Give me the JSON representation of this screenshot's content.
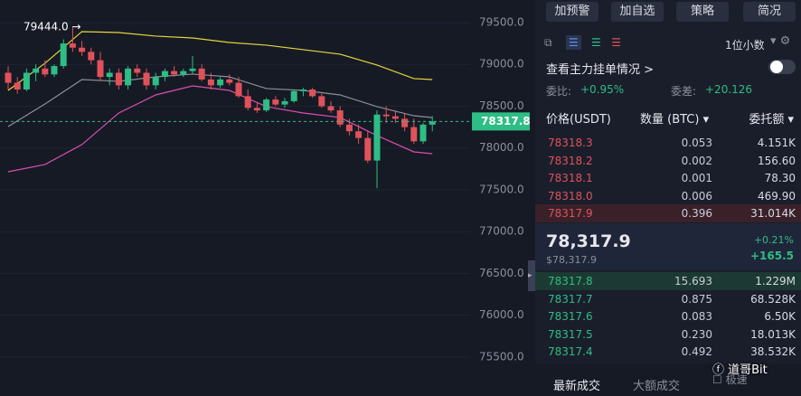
{
  "chart_data": {
    "type": "candlestick",
    "open": [
      78900,
      78780,
      78700,
      78900,
      78950,
      78880,
      78980,
      79250,
      79200,
      79150,
      79050,
      78850,
      78900,
      78750,
      78950,
      78900,
      78750,
      78850,
      78920,
      78880,
      78920,
      78950,
      78820,
      78750,
      78820,
      78780,
      78620,
      78480,
      78450,
      78580,
      78520,
      78560,
      78680,
      78700,
      78620,
      78500,
      78450,
      78280,
      78200,
      78120,
      77850,
      78400,
      78380,
      78350,
      78250,
      78080,
      78280
    ],
    "high": [
      78980,
      78850,
      78950,
      79000,
      79050,
      79000,
      79300,
      79444,
      79280,
      79200,
      79150,
      78950,
      78950,
      78980,
      79000,
      78950,
      78900,
      78950,
      78980,
      78950,
      79100,
      79000,
      78900,
      78850,
      78880,
      78850,
      78700,
      78550,
      78600,
      78620,
      78600,
      78700,
      78720,
      78720,
      78650,
      78560,
      78500,
      78350,
      78280,
      78200,
      78450,
      78500,
      78450,
      78420,
      78350,
      78300,
      78380
    ],
    "low": [
      78700,
      78650,
      78680,
      78800,
      78850,
      78850,
      78950,
      79150,
      79100,
      79000,
      78800,
      78750,
      78700,
      78700,
      78850,
      78700,
      78700,
      78800,
      78850,
      78850,
      78880,
      78800,
      78700,
      78720,
      78750,
      78600,
      78450,
      78420,
      78430,
      78500,
      78480,
      78540,
      78620,
      78600,
      78480,
      78420,
      78250,
      78150,
      78050,
      77820,
      77520,
      78300,
      78300,
      78200,
      78050,
      78050,
      78200
    ],
    "close": [
      78780,
      78700,
      78900,
      78950,
      78880,
      78980,
      79250,
      79200,
      79150,
      79050,
      78850,
      78900,
      78750,
      78950,
      78900,
      78750,
      78850,
      78920,
      78880,
      78920,
      78950,
      78820,
      78750,
      78820,
      78780,
      78620,
      78480,
      78450,
      78580,
      78520,
      78560,
      78680,
      78700,
      78620,
      78500,
      78450,
      78280,
      78200,
      78120,
      77850,
      78400,
      78380,
      78350,
      78250,
      78080,
      78280,
      78318
    ],
    "up_color": "#2ebd85",
    "down_color": "#e0525a",
    "indicators": [
      {
        "color": "#e6d63a",
        "x": [
          0,
          4,
          8,
          12,
          16,
          20,
          24,
          28,
          32,
          36,
          40,
          44,
          46
        ],
        "values": [
          78689,
          79014,
          79392,
          79381,
          79338,
          79316,
          79262,
          79230,
          79176,
          79122,
          78992,
          78830,
          78819
        ]
      },
      {
        "color": "#8d8f99",
        "x": [
          0,
          4,
          8,
          12,
          16,
          20,
          24,
          28,
          32,
          36,
          40,
          44,
          46
        ],
        "values": [
          78257,
          78527,
          78819,
          78797,
          78851,
          78884,
          78851,
          78711,
          78689,
          78635,
          78495,
          78386,
          78365
        ]
      },
      {
        "color": "#d94fb0",
        "x": [
          0,
          4,
          8,
          12,
          16,
          20,
          24,
          28,
          32,
          36,
          40,
          44,
          46
        ],
        "values": [
          77716,
          77803,
          78041,
          78419,
          78635,
          78743,
          78689,
          78495,
          78419,
          78365,
          78149,
          77954,
          77932
        ]
      }
    ],
    "ylim": [
      75035,
      79770
    ],
    "yticks": [
      {
        "value": 79500,
        "label": "79500.0"
      },
      {
        "value": 79000,
        "label": "79000.0"
      },
      {
        "value": 78500,
        "label": "78500.0"
      },
      {
        "value": 78000,
        "label": "78000.0"
      },
      {
        "value": 77500,
        "label": "77500.0"
      },
      {
        "value": 77000,
        "label": "77000.0"
      },
      {
        "value": 76500,
        "label": "76500.0"
      },
      {
        "value": 76000,
        "label": "76000.0"
      },
      {
        "value": 75500,
        "label": "75500.0"
      }
    ],
    "high_marker": {
      "value": 79444,
      "label": "79444.0 →"
    },
    "last_price": {
      "value": 78317.8,
      "label": "78317.8"
    }
  },
  "toolbar": {
    "buttons": [
      "加预警",
      "加自选",
      "策略",
      "简况"
    ],
    "precision": "1位小数"
  },
  "order_book": {
    "main_orders": "查看主力挂单情况 >",
    "ratio_label": "委比:",
    "ratio": "+0.95%",
    "diff_label": "委差:",
    "diff": "+20.126",
    "headers": [
      "价格(USDT)",
      "数量 (BTC) ▾",
      "委托额 ▾"
    ],
    "asks": [
      [
        "78318.3",
        "0.053",
        "4.151K"
      ],
      [
        "78318.2",
        "0.002",
        "156.60"
      ],
      [
        "78318.1",
        "0.001",
        "78.30"
      ],
      [
        "78318.0",
        "0.006",
        "469.90"
      ],
      [
        "78317.9",
        "0.396",
        "31.014K"
      ]
    ],
    "last": "78,317.9",
    "last_usd": "$78,317.9",
    "change_pct": "+0.21%",
    "change": "+165.5",
    "bids": [
      [
        "78317.8",
        "15.693",
        "1.229M"
      ],
      [
        "78317.7",
        "0.875",
        "68.528K"
      ],
      [
        "78317.6",
        "0.083",
        "6.50K"
      ],
      [
        "78317.5",
        "0.230",
        "18.013K"
      ],
      [
        "78317.4",
        "0.492",
        "38.532K"
      ]
    ],
    "tabs": [
      "最新成交",
      "大额成交"
    ],
    "fast": "极速",
    "watermark": "道哥Bit"
  }
}
